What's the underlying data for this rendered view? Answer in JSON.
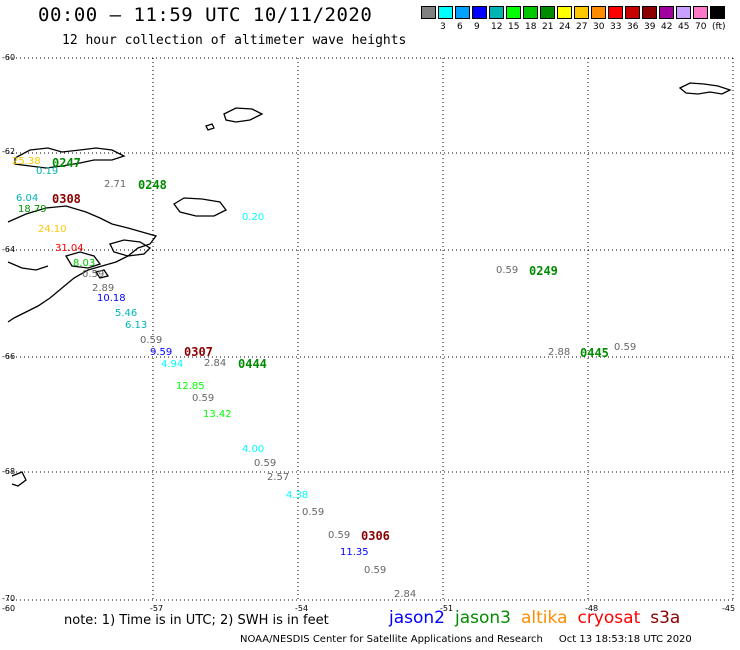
{
  "header": {
    "title": "00:00 — 11:59 UTC 10/11/2020",
    "subtitle": "12 hour collection of altimeter wave heights"
  },
  "legend": {
    "swatches": [
      {
        "color": "#808080",
        "label": ""
      },
      {
        "color": "#00ffff",
        "label": "3"
      },
      {
        "color": "#00a0ff",
        "label": "6"
      },
      {
        "color": "#0000ff",
        "label": "9"
      },
      {
        "color": "#00b4b4",
        "label": "12"
      },
      {
        "color": "#00ff00",
        "label": "15"
      },
      {
        "color": "#00c800",
        "label": "18"
      },
      {
        "color": "#008c00",
        "label": "21"
      },
      {
        "color": "#ffff00",
        "label": "24"
      },
      {
        "color": "#ffc800",
        "label": "27"
      },
      {
        "color": "#ff8c00",
        "label": "30"
      },
      {
        "color": "#ff0000",
        "label": "33"
      },
      {
        "color": "#c80000",
        "label": "36"
      },
      {
        "color": "#8c0000",
        "label": "39"
      },
      {
        "color": "#a000a0",
        "label": "42"
      },
      {
        "color": "#c8a0ff",
        "label": "45"
      },
      {
        "color": "#ff78c8",
        "label": "70"
      },
      {
        "color": "#000000",
        "label": "(ft)"
      }
    ]
  },
  "axes": {
    "lat_labels": [
      "-60",
      "-62",
      "-64",
      "-66",
      "-68",
      "-70"
    ],
    "lon_labels": [
      "-60",
      "-57",
      "-54",
      "-51",
      "-48",
      "-45"
    ]
  },
  "observations": [
    {
      "text": "25.38",
      "color": "#ffc800",
      "kind": "val"
    },
    {
      "text": "0247",
      "color": "#008c00",
      "kind": "time"
    },
    {
      "text": "0.19",
      "color": "#00b4b4",
      "kind": "val"
    },
    {
      "text": "2.71",
      "color": "#666666",
      "kind": "val"
    },
    {
      "text": "0248",
      "color": "#008c00",
      "kind": "time"
    },
    {
      "text": "6.04",
      "color": "#00b4b4",
      "kind": "val"
    },
    {
      "text": "0308",
      "color": "#8c0000",
      "kind": "time"
    },
    {
      "text": "18.79",
      "color": "#008c00",
      "kind": "val"
    },
    {
      "text": "24.10",
      "color": "#ffc800",
      "kind": "val"
    },
    {
      "text": "31.04",
      "color": "#ff0000",
      "kind": "val"
    },
    {
      "text": "0.20",
      "color": "#00ffff",
      "kind": "val"
    },
    {
      "text": "8.03",
      "color": "#00c800",
      "kind": "val"
    },
    {
      "text": "0.59",
      "color": "#666666",
      "kind": "val"
    },
    {
      "text": "2.89",
      "color": "#666666",
      "kind": "val"
    },
    {
      "text": "10.18",
      "color": "#0000ff",
      "kind": "val"
    },
    {
      "text": "5.46",
      "color": "#00b4b4",
      "kind": "val"
    },
    {
      "text": "6.13",
      "color": "#00b4b4",
      "kind": "val"
    },
    {
      "text": "0.59",
      "color": "#666666",
      "kind": "val"
    },
    {
      "text": "9.59",
      "color": "#0000ff",
      "kind": "val"
    },
    {
      "text": "0307",
      "color": "#8c0000",
      "kind": "time"
    },
    {
      "text": "4.94",
      "color": "#00ffff",
      "kind": "val"
    },
    {
      "text": "2.84",
      "color": "#666666",
      "kind": "val"
    },
    {
      "text": "0444",
      "color": "#008c00",
      "kind": "time"
    },
    {
      "text": "12.85",
      "color": "#00ff00",
      "kind": "val"
    },
    {
      "text": "0.59",
      "color": "#666666",
      "kind": "val"
    },
    {
      "text": "13.42",
      "color": "#00ff00",
      "kind": "val"
    },
    {
      "text": "4.00",
      "color": "#00ffff",
      "kind": "val"
    },
    {
      "text": "0.59",
      "color": "#666666",
      "kind": "val"
    },
    {
      "text": "2.57",
      "color": "#666666",
      "kind": "val"
    },
    {
      "text": "4.38",
      "color": "#00ffff",
      "kind": "val"
    },
    {
      "text": "0.59",
      "color": "#666666",
      "kind": "val"
    },
    {
      "text": "0.59",
      "color": "#666666",
      "kind": "val"
    },
    {
      "text": "0306",
      "color": "#8c0000",
      "kind": "time"
    },
    {
      "text": "11.35",
      "color": "#0000ff",
      "kind": "val"
    },
    {
      "text": "0.59",
      "color": "#666666",
      "kind": "val"
    },
    {
      "text": "2.84",
      "color": "#666666",
      "kind": "val"
    },
    {
      "text": "0.59",
      "color": "#666666",
      "kind": "val"
    },
    {
      "text": "0249",
      "color": "#008c00",
      "kind": "time"
    },
    {
      "text": "2.88",
      "color": "#666666",
      "kind": "val"
    },
    {
      "text": "0445",
      "color": "#008c00",
      "kind": "time"
    },
    {
      "text": "0.59",
      "color": "#666666",
      "kind": "val"
    }
  ],
  "footer": {
    "note": "note: 1) Time is in UTC; 2) SWH is in feet",
    "satellites": [
      {
        "name": "jason2",
        "color": "#0000ff"
      },
      {
        "name": "jason3",
        "color": "#008c00"
      },
      {
        "name": "altika",
        "color": "#ff8c00"
      },
      {
        "name": "cryosat",
        "color": "#ff0000"
      },
      {
        "name": "s3a",
        "color": "#8c0000"
      }
    ],
    "credit": "NOAA/NESDIS Center for Satellite Applications and Research",
    "timestamp": "Oct 13 18:53:18 UTC 2020"
  }
}
